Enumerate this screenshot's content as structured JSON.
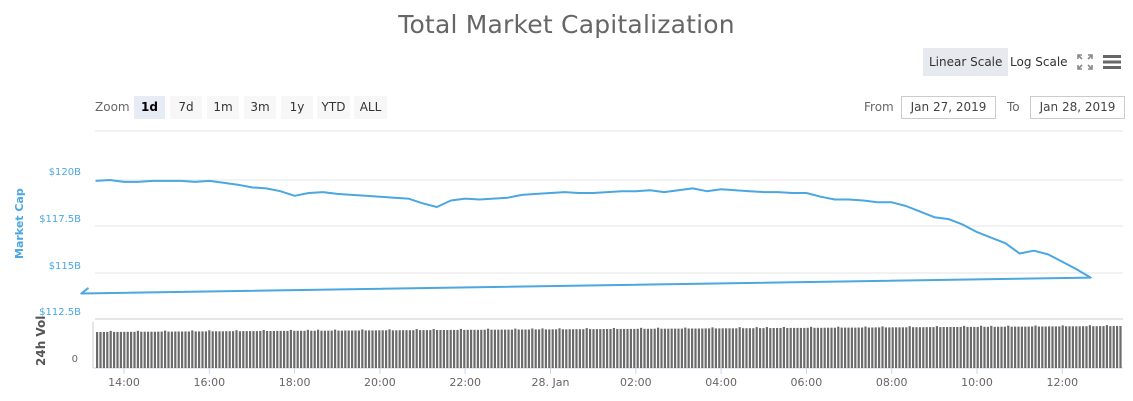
{
  "title": "Total Market Capitalization",
  "toolbar": {
    "linear_scale": "Linear Scale",
    "log_scale": "Log Scale",
    "fullscreen_icon": "fullscreen-icon",
    "menu_icon": "hamburger-menu-icon"
  },
  "zoom": {
    "label": "Zoom",
    "buttons": [
      "1d",
      "7d",
      "1m",
      "3m",
      "1y",
      "YTD",
      "ALL"
    ],
    "active": "1d"
  },
  "range": {
    "from_label": "From",
    "from_value": "Jan 27, 2019",
    "to_label": "To",
    "to_value": "Jan 28, 2019"
  },
  "colors": {
    "line": "#4aa7e0",
    "bars": "#6b6b6b",
    "axis_label": "#4aa7e0",
    "active_scale_bg": "#e6e9ed"
  },
  "chart_data": {
    "type": "line",
    "title": "Total Market Capitalization",
    "ylabel": "Market Cap",
    "y2label": "24h Vol",
    "y_ticks": [
      "$120B",
      "$117.5B",
      "$115B",
      "$112.5B"
    ],
    "y2_ticks": [
      "0"
    ],
    "ylim": [
      112.5,
      120.5
    ],
    "x_ticks": [
      "14:00",
      "16:00",
      "18:00",
      "20:00",
      "22:00",
      "28. Jan",
      "02:00",
      "04:00",
      "06:00",
      "08:00",
      "10:00",
      "12:00"
    ],
    "grid": true,
    "series": [
      {
        "name": "Market Cap ($B)",
        "x": [
          "13:20",
          "13:40",
          "14:00",
          "14:20",
          "14:40",
          "15:00",
          "15:20",
          "15:40",
          "16:00",
          "16:20",
          "16:40",
          "17:00",
          "17:20",
          "17:40",
          "18:00",
          "18:20",
          "18:40",
          "19:00",
          "19:20",
          "19:40",
          "20:00",
          "20:20",
          "20:40",
          "21:00",
          "21:20",
          "21:40",
          "22:00",
          "22:20",
          "22:40",
          "23:00",
          "23:20",
          "23:40",
          "00:00",
          "00:20",
          "00:40",
          "01:00",
          "01:20",
          "01:40",
          "02:00",
          "02:20",
          "02:40",
          "03:00",
          "03:20",
          "03:40",
          "04:00",
          "04:20",
          "04:40",
          "05:00",
          "05:20",
          "05:40",
          "06:00",
          "06:20",
          "06:40",
          "07:00",
          "07:20",
          "07:40",
          "08:00",
          "08:20",
          "08:40",
          "09:00",
          "09:20",
          "09:40",
          "10:00",
          "10:20",
          "10:40",
          "11:00",
          "11:20",
          "11:40",
          "12:00",
          "12:20",
          "12:40",
          "13:00",
          "13:10"
        ],
        "values": [
          119.95,
          120.0,
          119.9,
          119.9,
          119.95,
          119.95,
          119.95,
          119.9,
          119.95,
          119.85,
          119.75,
          119.6,
          119.55,
          119.4,
          119.15,
          119.3,
          119.35,
          119.25,
          119.2,
          119.15,
          119.1,
          119.05,
          119.0,
          118.75,
          118.55,
          118.9,
          119.0,
          118.95,
          119.0,
          119.05,
          119.2,
          119.25,
          119.3,
          119.35,
          119.3,
          119.3,
          119.35,
          119.4,
          119.4,
          119.45,
          119.35,
          119.45,
          119.55,
          119.4,
          119.5,
          119.45,
          119.4,
          119.35,
          119.35,
          119.3,
          119.3,
          119.1,
          118.95,
          118.95,
          118.9,
          118.8,
          118.8,
          118.6,
          118.3,
          118.0,
          117.9,
          117.6,
          117.2,
          116.9,
          116.6,
          116.05,
          116.2,
          116.0,
          115.6,
          115.2,
          114.75,
          113.9,
          114.2
        ]
      },
      {
        "name": "24h Vol",
        "values_relative": "approximately flat, slightly increasing toward end"
      }
    ]
  }
}
